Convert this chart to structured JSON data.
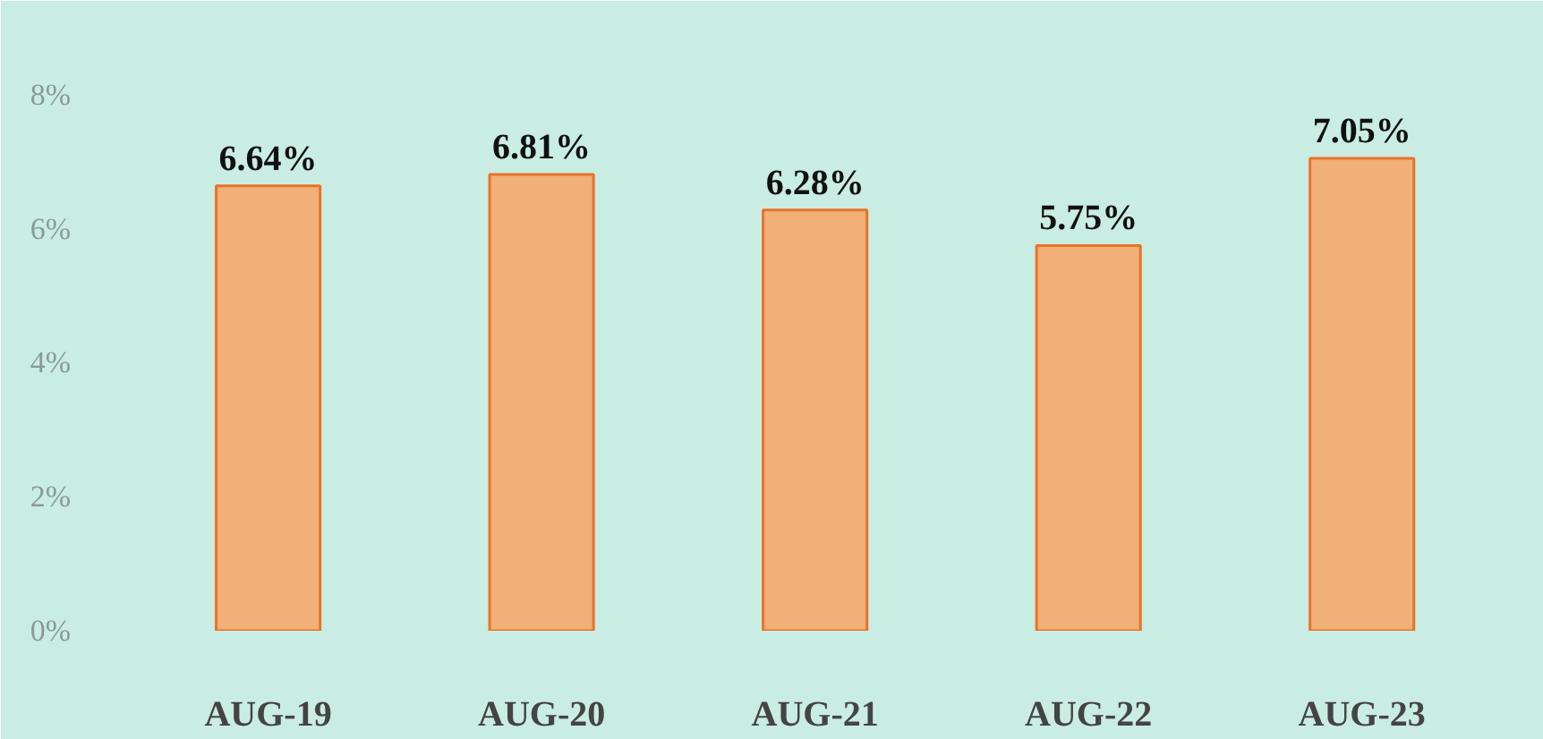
{
  "chart_data": {
    "type": "bar",
    "categories": [
      "AUG-19",
      "AUG-20",
      "AUG-21",
      "AUG-22",
      "AUG-23"
    ],
    "values": [
      6.64,
      6.81,
      6.28,
      5.75,
      7.05
    ],
    "value_labels": [
      "6.64%",
      "6.81%",
      "6.28%",
      "5.75%",
      "7.05%"
    ],
    "color": "#f4a96c",
    "ylim": [
      0,
      8.6
    ],
    "yticks": [
      {
        "value": 0,
        "label": "0%"
      },
      {
        "value": 2,
        "label": "2%"
      },
      {
        "value": 4,
        "label": "4%"
      },
      {
        "value": 6,
        "label": "6%"
      },
      {
        "value": 8,
        "label": "8%"
      }
    ],
    "grid": false
  }
}
